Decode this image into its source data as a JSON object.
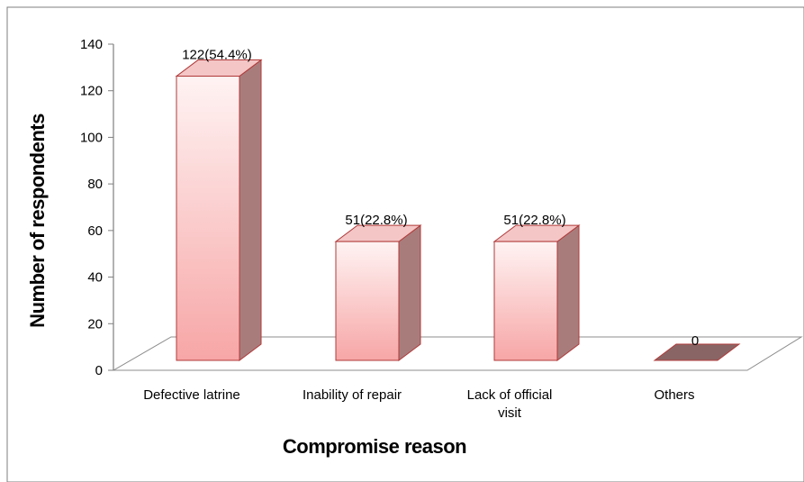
{
  "chart_data": {
    "type": "bar",
    "style": "3d",
    "categories": [
      "Defective latrine",
      "Inability of repair",
      "Lack of official visit",
      "Others"
    ],
    "category_lines": [
      [
        "Defective latrine"
      ],
      [
        "Inability of repair"
      ],
      [
        "Lack of official",
        "visit"
      ],
      [
        "Others"
      ]
    ],
    "values": [
      122,
      51,
      51,
      0
    ],
    "data_labels": [
      "122(54.4%)",
      "51(22.8%)",
      "51(22.8%)",
      "0"
    ],
    "title": "",
    "xlabel": "Compromise reason",
    "ylabel": "Number of respondents",
    "ylim": [
      0,
      140
    ],
    "yticks": [
      0,
      20,
      40,
      60,
      80,
      100,
      120,
      140
    ],
    "grid": false,
    "legend": "none",
    "colors": {
      "bar_front_top": "#fff3f3",
      "bar_front_bottom": "#f7a6a6",
      "bar_side": "#a97c7c",
      "bar_top": "#f4c6c6",
      "bar_edge": "#b03a3a",
      "zero_bar": "#8a6565",
      "floor_edge": "#8c8c8c",
      "border": "#7f7f7f"
    }
  }
}
